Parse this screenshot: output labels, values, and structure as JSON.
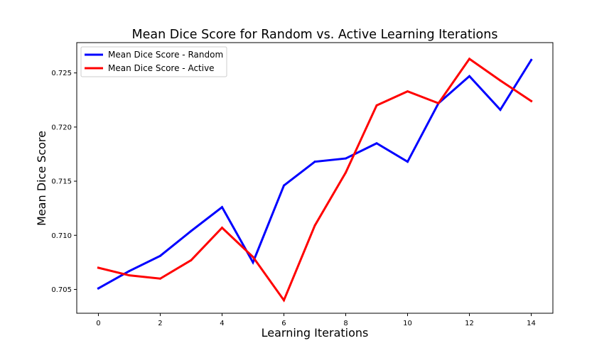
{
  "chart_data": {
    "type": "line",
    "title": "Mean Dice Score for Random vs. Active Learning Iterations",
    "xlabel": "Learning Iterations",
    "ylabel": "Mean Dice Score",
    "x": [
      0,
      1,
      2,
      3,
      4,
      5,
      6,
      7,
      8,
      9,
      10,
      11,
      12,
      13,
      14
    ],
    "xlim": [
      -0.7,
      14.7
    ],
    "ylim": [
      0.7028,
      0.7278
    ],
    "x_ticks": [
      0,
      2,
      4,
      6,
      8,
      10,
      12,
      14
    ],
    "x_tick_labels": [
      "0",
      "2",
      "4",
      "6",
      "8",
      "10",
      "12",
      "14"
    ],
    "y_ticks": [
      0.705,
      0.71,
      0.715,
      0.72,
      0.725
    ],
    "y_tick_labels": [
      "0.705",
      "0.710",
      "0.715",
      "0.720",
      "0.725"
    ],
    "grid": false,
    "legend_position": "top-left",
    "series": [
      {
        "name": "Mean Dice Score - Random",
        "color": "#0000ff",
        "values": [
          0.7051,
          0.7067,
          0.7081,
          0.7104,
          0.7126,
          0.7075,
          0.7146,
          0.7168,
          0.7171,
          0.7185,
          0.7168,
          0.7222,
          0.7247,
          0.7216,
          0.7262
        ]
      },
      {
        "name": "Mean Dice Score - Active",
        "color": "#ff0000",
        "values": [
          0.707,
          0.7063,
          0.706,
          0.7077,
          0.7107,
          0.708,
          0.704,
          0.7109,
          0.7158,
          0.722,
          0.7233,
          0.7222,
          0.7263,
          0.7243,
          0.7224
        ]
      }
    ]
  }
}
